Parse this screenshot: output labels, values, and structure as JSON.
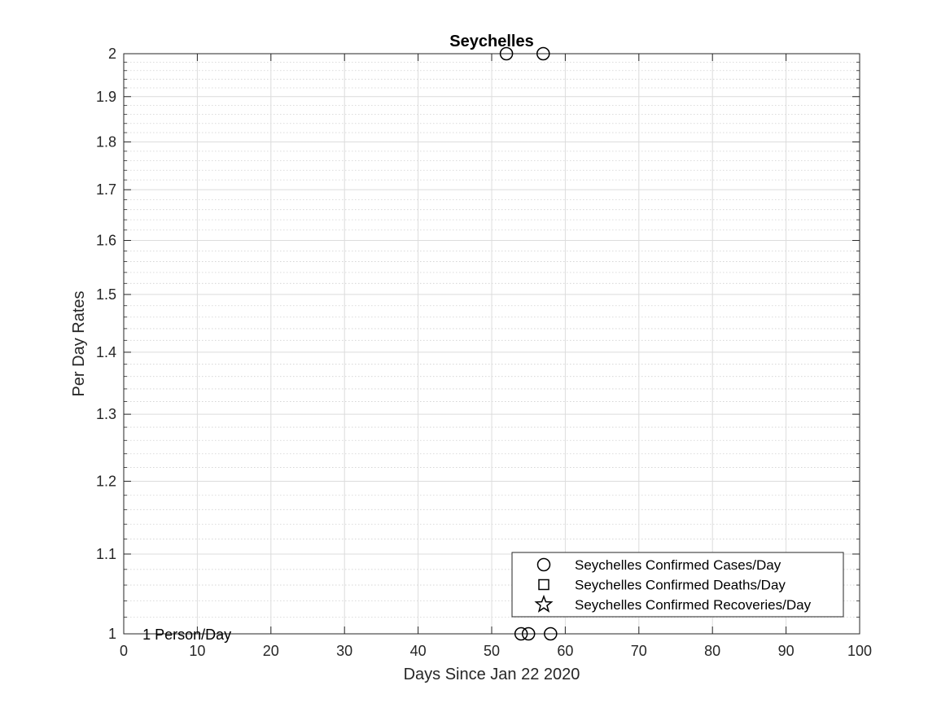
{
  "chart_data": {
    "type": "scatter",
    "title": "Seychelles",
    "xlabel": "Days Since Jan 22 2020",
    "ylabel": "Per Day Rates",
    "xlim": [
      0,
      100
    ],
    "ylim": [
      1,
      2
    ],
    "yscale": "log",
    "grid": true,
    "minor_grid": true,
    "x_ticks": [
      0,
      10,
      20,
      30,
      40,
      50,
      60,
      70,
      80,
      90,
      100
    ],
    "y_ticks": [
      1,
      1.1,
      1.2,
      1.3,
      1.4,
      1.5,
      1.6,
      1.7,
      1.8,
      1.9,
      2
    ],
    "y_tick_labels": [
      "1",
      "1.1",
      "1.2",
      "1.3",
      "1.4",
      "1.5",
      "1.6",
      "1.7",
      "1.8",
      "1.9",
      "2"
    ],
    "annotation": {
      "text": "1 Person/Day",
      "x": 3,
      "y": 1
    },
    "legend_position": "bottom-right",
    "series": [
      {
        "name": "Seychelles Confirmed Cases/Day",
        "marker": "circle",
        "points": [
          [
            52,
            2
          ],
          [
            54,
            1
          ],
          [
            55,
            1
          ],
          [
            57,
            2
          ],
          [
            58,
            1
          ]
        ]
      },
      {
        "name": "Seychelles Confirmed Deaths/Day",
        "marker": "square",
        "points": []
      },
      {
        "name": "Seychelles Confirmed Recoveries/Day",
        "marker": "star",
        "points": []
      }
    ]
  }
}
